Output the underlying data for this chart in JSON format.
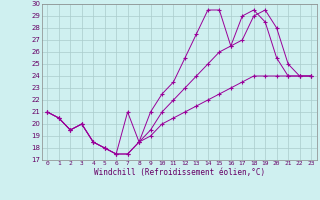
{
  "xlabel": "Windchill (Refroidissement éolien,°C)",
  "xlim": [
    -0.5,
    23.5
  ],
  "ylim": [
    17,
    30
  ],
  "xticks": [
    0,
    1,
    2,
    3,
    4,
    5,
    6,
    7,
    8,
    9,
    10,
    11,
    12,
    13,
    14,
    15,
    16,
    17,
    18,
    19,
    20,
    21,
    22,
    23
  ],
  "yticks": [
    17,
    18,
    19,
    20,
    21,
    22,
    23,
    24,
    25,
    26,
    27,
    28,
    29,
    30
  ],
  "bg_color": "#cff0f0",
  "grid_color": "#aacccc",
  "line_color": "#990099",
  "line1_x": [
    0,
    1,
    2,
    3,
    4,
    5,
    6,
    7,
    8,
    9,
    10,
    11,
    12,
    13,
    14,
    15,
    16,
    17,
    18,
    19,
    20,
    21,
    22,
    23
  ],
  "line1_y": [
    21.0,
    20.5,
    19.5,
    20.0,
    18.5,
    18.0,
    17.5,
    21.0,
    18.5,
    21.0,
    22.5,
    23.5,
    25.5,
    27.5,
    29.5,
    29.5,
    26.5,
    29.0,
    29.5,
    28.5,
    25.5,
    24.0,
    24.0,
    24.0
  ],
  "line2_x": [
    0,
    1,
    2,
    3,
    4,
    5,
    6,
    7,
    8,
    9,
    10,
    11,
    12,
    13,
    14,
    15,
    16,
    17,
    18,
    19,
    20,
    21,
    22,
    23
  ],
  "line2_y": [
    21.0,
    20.5,
    19.5,
    20.0,
    18.5,
    18.0,
    17.5,
    17.5,
    18.5,
    19.5,
    21.0,
    22.0,
    23.0,
    24.0,
    25.0,
    26.0,
    26.5,
    27.0,
    29.0,
    29.5,
    28.0,
    25.0,
    24.0,
    24.0
  ],
  "line3_x": [
    0,
    1,
    2,
    3,
    4,
    5,
    6,
    7,
    8,
    9,
    10,
    11,
    12,
    13,
    14,
    15,
    16,
    17,
    18,
    19,
    20,
    21,
    22,
    23
  ],
  "line3_y": [
    21.0,
    20.5,
    19.5,
    20.0,
    18.5,
    18.0,
    17.5,
    17.5,
    18.5,
    19.0,
    20.0,
    20.5,
    21.0,
    21.5,
    22.0,
    22.5,
    23.0,
    23.5,
    24.0,
    24.0,
    24.0,
    24.0,
    24.0,
    24.0
  ]
}
